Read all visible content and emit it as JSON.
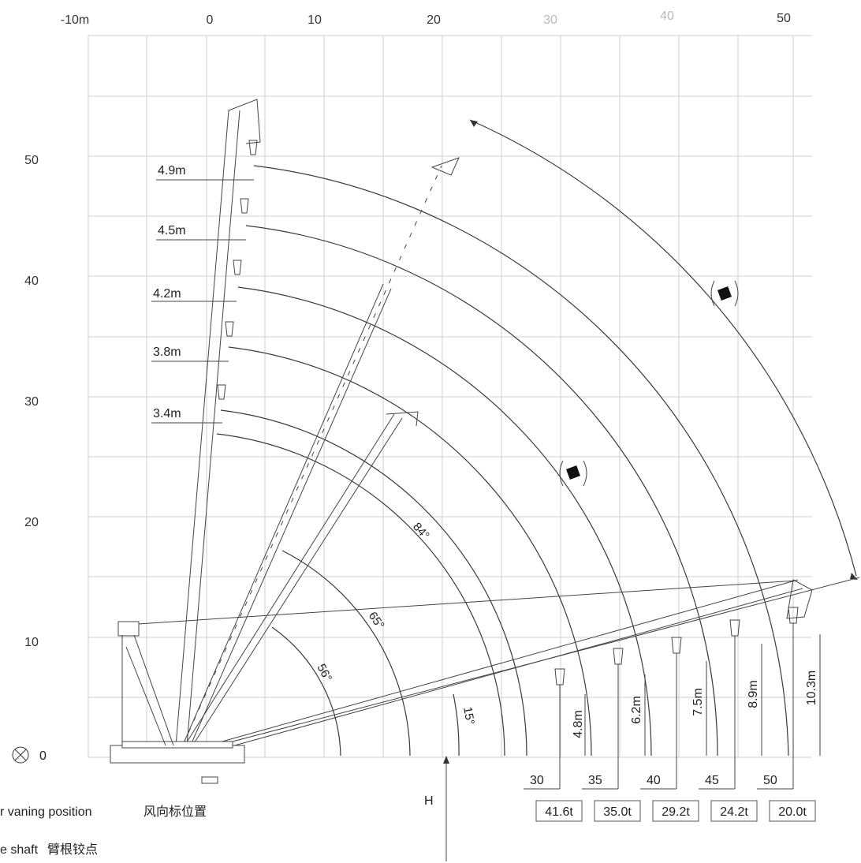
{
  "x_axis": {
    "ticks": [
      "-10m",
      "0",
      "10",
      "20",
      "30",
      "40",
      "50"
    ],
    "values": [
      -10,
      0,
      10,
      20,
      30,
      40,
      50
    ]
  },
  "y_axis": {
    "ticks": [
      "50",
      "40",
      "30",
      "20",
      "10"
    ],
    "values": [
      50,
      40,
      30,
      20,
      10
    ]
  },
  "jib_offsets": [
    "4.9m",
    "4.5m",
    "4.2m",
    "3.8m",
    "3.4m"
  ],
  "luffing_angles": [
    "84°",
    "65°",
    "56°",
    "15°"
  ],
  "hook_heights": [
    "4.8m",
    "6.2m",
    "7.5m",
    "8.9m",
    "10.3m"
  ],
  "radius_labels": [
    "30",
    "35",
    "40",
    "45",
    "50"
  ],
  "load_capacities": [
    "41.6t",
    "35.0t",
    "29.2t",
    "24.2t",
    "20.0t"
  ],
  "h_marker": "H",
  "legend": {
    "symbol_value": "0",
    "wind_text": "r vaning position",
    "wind_text_cn": "风向标位置",
    "shaft_text": "e shaft",
    "shaft_text_cn": "臂根铰点"
  },
  "colors": {
    "line": "#3a3a3a",
    "grid": "#cfcfcf",
    "marker": "#111111"
  }
}
